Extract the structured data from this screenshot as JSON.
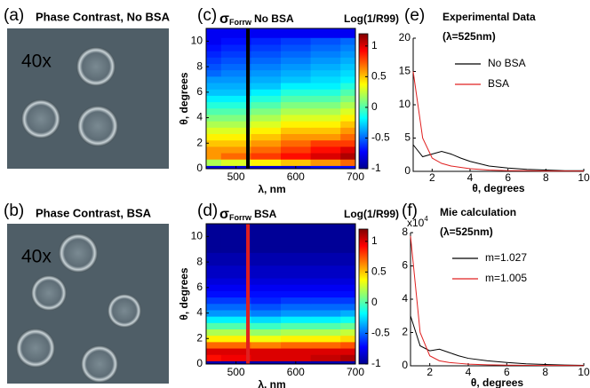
{
  "panels": {
    "a": {
      "label": "(a)",
      "title": "Phase Contrast, No BSA",
      "magnification": "40x"
    },
    "b": {
      "label": "(b)",
      "title": "Phase Contrast, BSA",
      "magnification": "40x"
    }
  },
  "chart_data": [
    {
      "type": "heatmap",
      "panel_label": "(c)",
      "title": "σ",
      "title_sub": "Forrw",
      "title_rest": "No BSA",
      "xlabel": "λ, nm",
      "ylabel": "θ, degrees",
      "colorbar_label": "Log(1/R99)",
      "x": [
        450,
        500,
        550,
        600,
        650,
        700
      ],
      "y": [
        0,
        0.5,
        1,
        1.5,
        2,
        2.5,
        3,
        3.5,
        4,
        4.5,
        5,
        5.5,
        6,
        6.5,
        7,
        7.5,
        8,
        8.5,
        9,
        9.5,
        10
      ],
      "z": [
        [
          -0.8,
          -0.8,
          -0.8,
          -0.8,
          -0.7,
          -0.7
        ],
        [
          0.2,
          0.3,
          0.4,
          0.5,
          0.6,
          0.7
        ],
        [
          0.6,
          0.7,
          0.8,
          0.9,
          1.0,
          1.1
        ],
        [
          0.6,
          0.6,
          0.7,
          0.8,
          0.9,
          1.0
        ],
        [
          0.5,
          0.5,
          0.6,
          0.7,
          0.8,
          0.8
        ],
        [
          0.4,
          0.4,
          0.5,
          0.6,
          0.6,
          0.7
        ],
        [
          0.3,
          0.3,
          0.4,
          0.5,
          0.5,
          0.6
        ],
        [
          0.2,
          0.2,
          0.3,
          0.4,
          0.4,
          0.5
        ],
        [
          0.1,
          0.1,
          0.2,
          0.3,
          0.3,
          0.4
        ],
        [
          0.0,
          0.0,
          0.1,
          0.2,
          0.2,
          0.3
        ],
        [
          -0.1,
          -0.1,
          0.0,
          0.1,
          0.1,
          0.2
        ],
        [
          -0.2,
          -0.2,
          -0.1,
          0.0,
          0.0,
          0.1
        ],
        [
          -0.3,
          -0.3,
          -0.2,
          -0.1,
          -0.1,
          0.0
        ],
        [
          -0.35,
          -0.35,
          -0.3,
          -0.2,
          -0.2,
          -0.1
        ],
        [
          -0.4,
          -0.4,
          -0.35,
          -0.3,
          -0.25,
          -0.2
        ],
        [
          -0.5,
          -0.45,
          -0.4,
          -0.35,
          -0.3,
          -0.25
        ],
        [
          -0.55,
          -0.5,
          -0.45,
          -0.4,
          -0.35,
          -0.3
        ],
        [
          -0.6,
          -0.55,
          -0.5,
          -0.45,
          -0.4,
          -0.35
        ],
        [
          -0.65,
          -0.6,
          -0.55,
          -0.5,
          -0.45,
          -0.4
        ],
        [
          -0.7,
          -0.65,
          -0.6,
          -0.55,
          -0.5,
          -0.45
        ],
        [
          -0.75,
          -0.7,
          -0.65,
          -0.6,
          -0.55,
          -0.5
        ]
      ],
      "xlim": [
        450,
        700
      ],
      "xticks": [
        500,
        600,
        700
      ],
      "ylim": [
        0,
        11
      ],
      "yticks": [
        0,
        2,
        4,
        6,
        8,
        10
      ],
      "zlim": [
        -1,
        1.2
      ],
      "colorbar_ticks": [
        -1,
        -0.5,
        0,
        0.5,
        1
      ],
      "marker_x": 520,
      "marker_color": "#000000"
    },
    {
      "type": "heatmap",
      "panel_label": "(d)",
      "title": "σ",
      "title_sub": "Forrw",
      "title_rest": "BSA",
      "xlabel": "λ, nm",
      "ylabel": "θ, degrees",
      "colorbar_label": "Log(1/R99)",
      "x": [
        450,
        500,
        550,
        600,
        650,
        700
      ],
      "y": [
        0,
        0.5,
        1,
        1.5,
        2,
        2.5,
        3,
        3.5,
        4,
        4.5,
        5,
        5.5,
        6,
        6.5,
        7,
        7.5,
        8,
        8.5,
        9,
        9.5,
        10
      ],
      "z": [
        [
          -0.9,
          -0.9,
          -0.9,
          -0.9,
          -0.9,
          -0.9
        ],
        [
          0.9,
          0.95,
          1.0,
          1.0,
          1.05,
          1.1
        ],
        [
          1.0,
          1.0,
          1.0,
          1.0,
          1.0,
          1.0
        ],
        [
          0.7,
          0.7,
          0.65,
          0.7,
          0.7,
          0.75
        ],
        [
          0.4,
          0.4,
          0.35,
          0.4,
          0.4,
          0.45
        ],
        [
          0.2,
          0.2,
          0.15,
          0.2,
          0.2,
          0.25
        ],
        [
          0.0,
          0.0,
          -0.05,
          0.0,
          0.0,
          0.05
        ],
        [
          -0.2,
          -0.2,
          -0.25,
          -0.2,
          -0.2,
          -0.15
        ],
        [
          -0.4,
          -0.4,
          -0.45,
          -0.4,
          -0.4,
          -0.35
        ],
        [
          -0.5,
          -0.5,
          -0.55,
          -0.5,
          -0.5,
          -0.5
        ],
        [
          -0.6,
          -0.6,
          -0.65,
          -0.6,
          -0.6,
          -0.6
        ],
        [
          -0.7,
          -0.7,
          -0.7,
          -0.7,
          -0.7,
          -0.7
        ],
        [
          -0.75,
          -0.75,
          -0.75,
          -0.75,
          -0.75,
          -0.75
        ],
        [
          -0.8,
          -0.8,
          -0.8,
          -0.8,
          -0.8,
          -0.8
        ],
        [
          -0.85,
          -0.85,
          -0.85,
          -0.85,
          -0.85,
          -0.85
        ],
        [
          -0.85,
          -0.85,
          -0.85,
          -0.85,
          -0.85,
          -0.85
        ],
        [
          -0.9,
          -0.9,
          -0.9,
          -0.9,
          -0.9,
          -0.9
        ],
        [
          -0.9,
          -0.9,
          -0.9,
          -0.9,
          -0.9,
          -0.9
        ],
        [
          -0.95,
          -0.95,
          -0.95,
          -0.95,
          -0.95,
          -0.95
        ],
        [
          -0.95,
          -0.95,
          -0.95,
          -0.95,
          -0.95,
          -0.95
        ],
        [
          -0.95,
          -0.95,
          -0.95,
          -0.95,
          -0.95,
          -0.95
        ]
      ],
      "xlim": [
        450,
        700
      ],
      "xticks": [
        500,
        600,
        700
      ],
      "ylim": [
        0,
        11
      ],
      "yticks": [
        0,
        2,
        4,
        6,
        8,
        10
      ],
      "zlim": [
        -1,
        1.2
      ],
      "colorbar_ticks": [
        -1,
        -0.5,
        0,
        0.5,
        1
      ],
      "marker_x": 520,
      "marker_color": "#e02020"
    },
    {
      "type": "line",
      "panel_label": "(e)",
      "title": "Experimental Data",
      "subtitle": "(λ=525nm)",
      "xlabel": "θ, degrees",
      "x": [
        1,
        1.5,
        2,
        2.5,
        3,
        3.5,
        4,
        5,
        6,
        7,
        8,
        9,
        10
      ],
      "series": [
        {
          "name": "No BSA",
          "color": "#000000",
          "values": [
            4,
            2.2,
            2.6,
            3.0,
            2.6,
            2.0,
            1.5,
            0.8,
            0.5,
            0.3,
            0.2,
            0.1,
            0.1
          ]
        },
        {
          "name": "BSA",
          "color": "#e02020",
          "values": [
            15,
            5,
            2,
            1.2,
            0.8,
            0.6,
            0.4,
            0.2,
            0.1,
            0.1,
            0.05,
            0.05,
            0.05
          ]
        }
      ],
      "xlim": [
        1,
        10
      ],
      "xticks": [
        2,
        4,
        6,
        8,
        10
      ],
      "ylim": [
        0,
        20
      ],
      "yticks": [
        0,
        5,
        10,
        15,
        20
      ]
    },
    {
      "type": "line",
      "panel_label": "(f)",
      "title": "Mie calculation",
      "subtitle": "(λ=525nm)",
      "xlabel": "θ, degrees",
      "multiplier": "x10",
      "multiplier_exp": "4",
      "x": [
        1,
        1.5,
        2,
        2.5,
        3,
        3.5,
        4,
        5,
        6,
        7,
        8,
        9,
        10
      ],
      "series": [
        {
          "name": "m=1.027",
          "color": "#000000",
          "values": [
            3,
            1.2,
            0.9,
            1.0,
            0.8,
            0.6,
            0.45,
            0.3,
            0.2,
            0.12,
            0.08,
            0.05,
            0.03
          ]
        },
        {
          "name": "m=1.005",
          "color": "#e02020",
          "values": [
            7.8,
            2,
            0.6,
            0.3,
            0.2,
            0.15,
            0.1,
            0.06,
            0.04,
            0.03,
            0.02,
            0.02,
            0.01
          ]
        }
      ],
      "xlim": [
        1,
        10
      ],
      "xticks": [
        2,
        4,
        6,
        8,
        10
      ],
      "ylim": [
        0,
        8
      ],
      "yticks": [
        0,
        2,
        4,
        6,
        8
      ]
    }
  ]
}
